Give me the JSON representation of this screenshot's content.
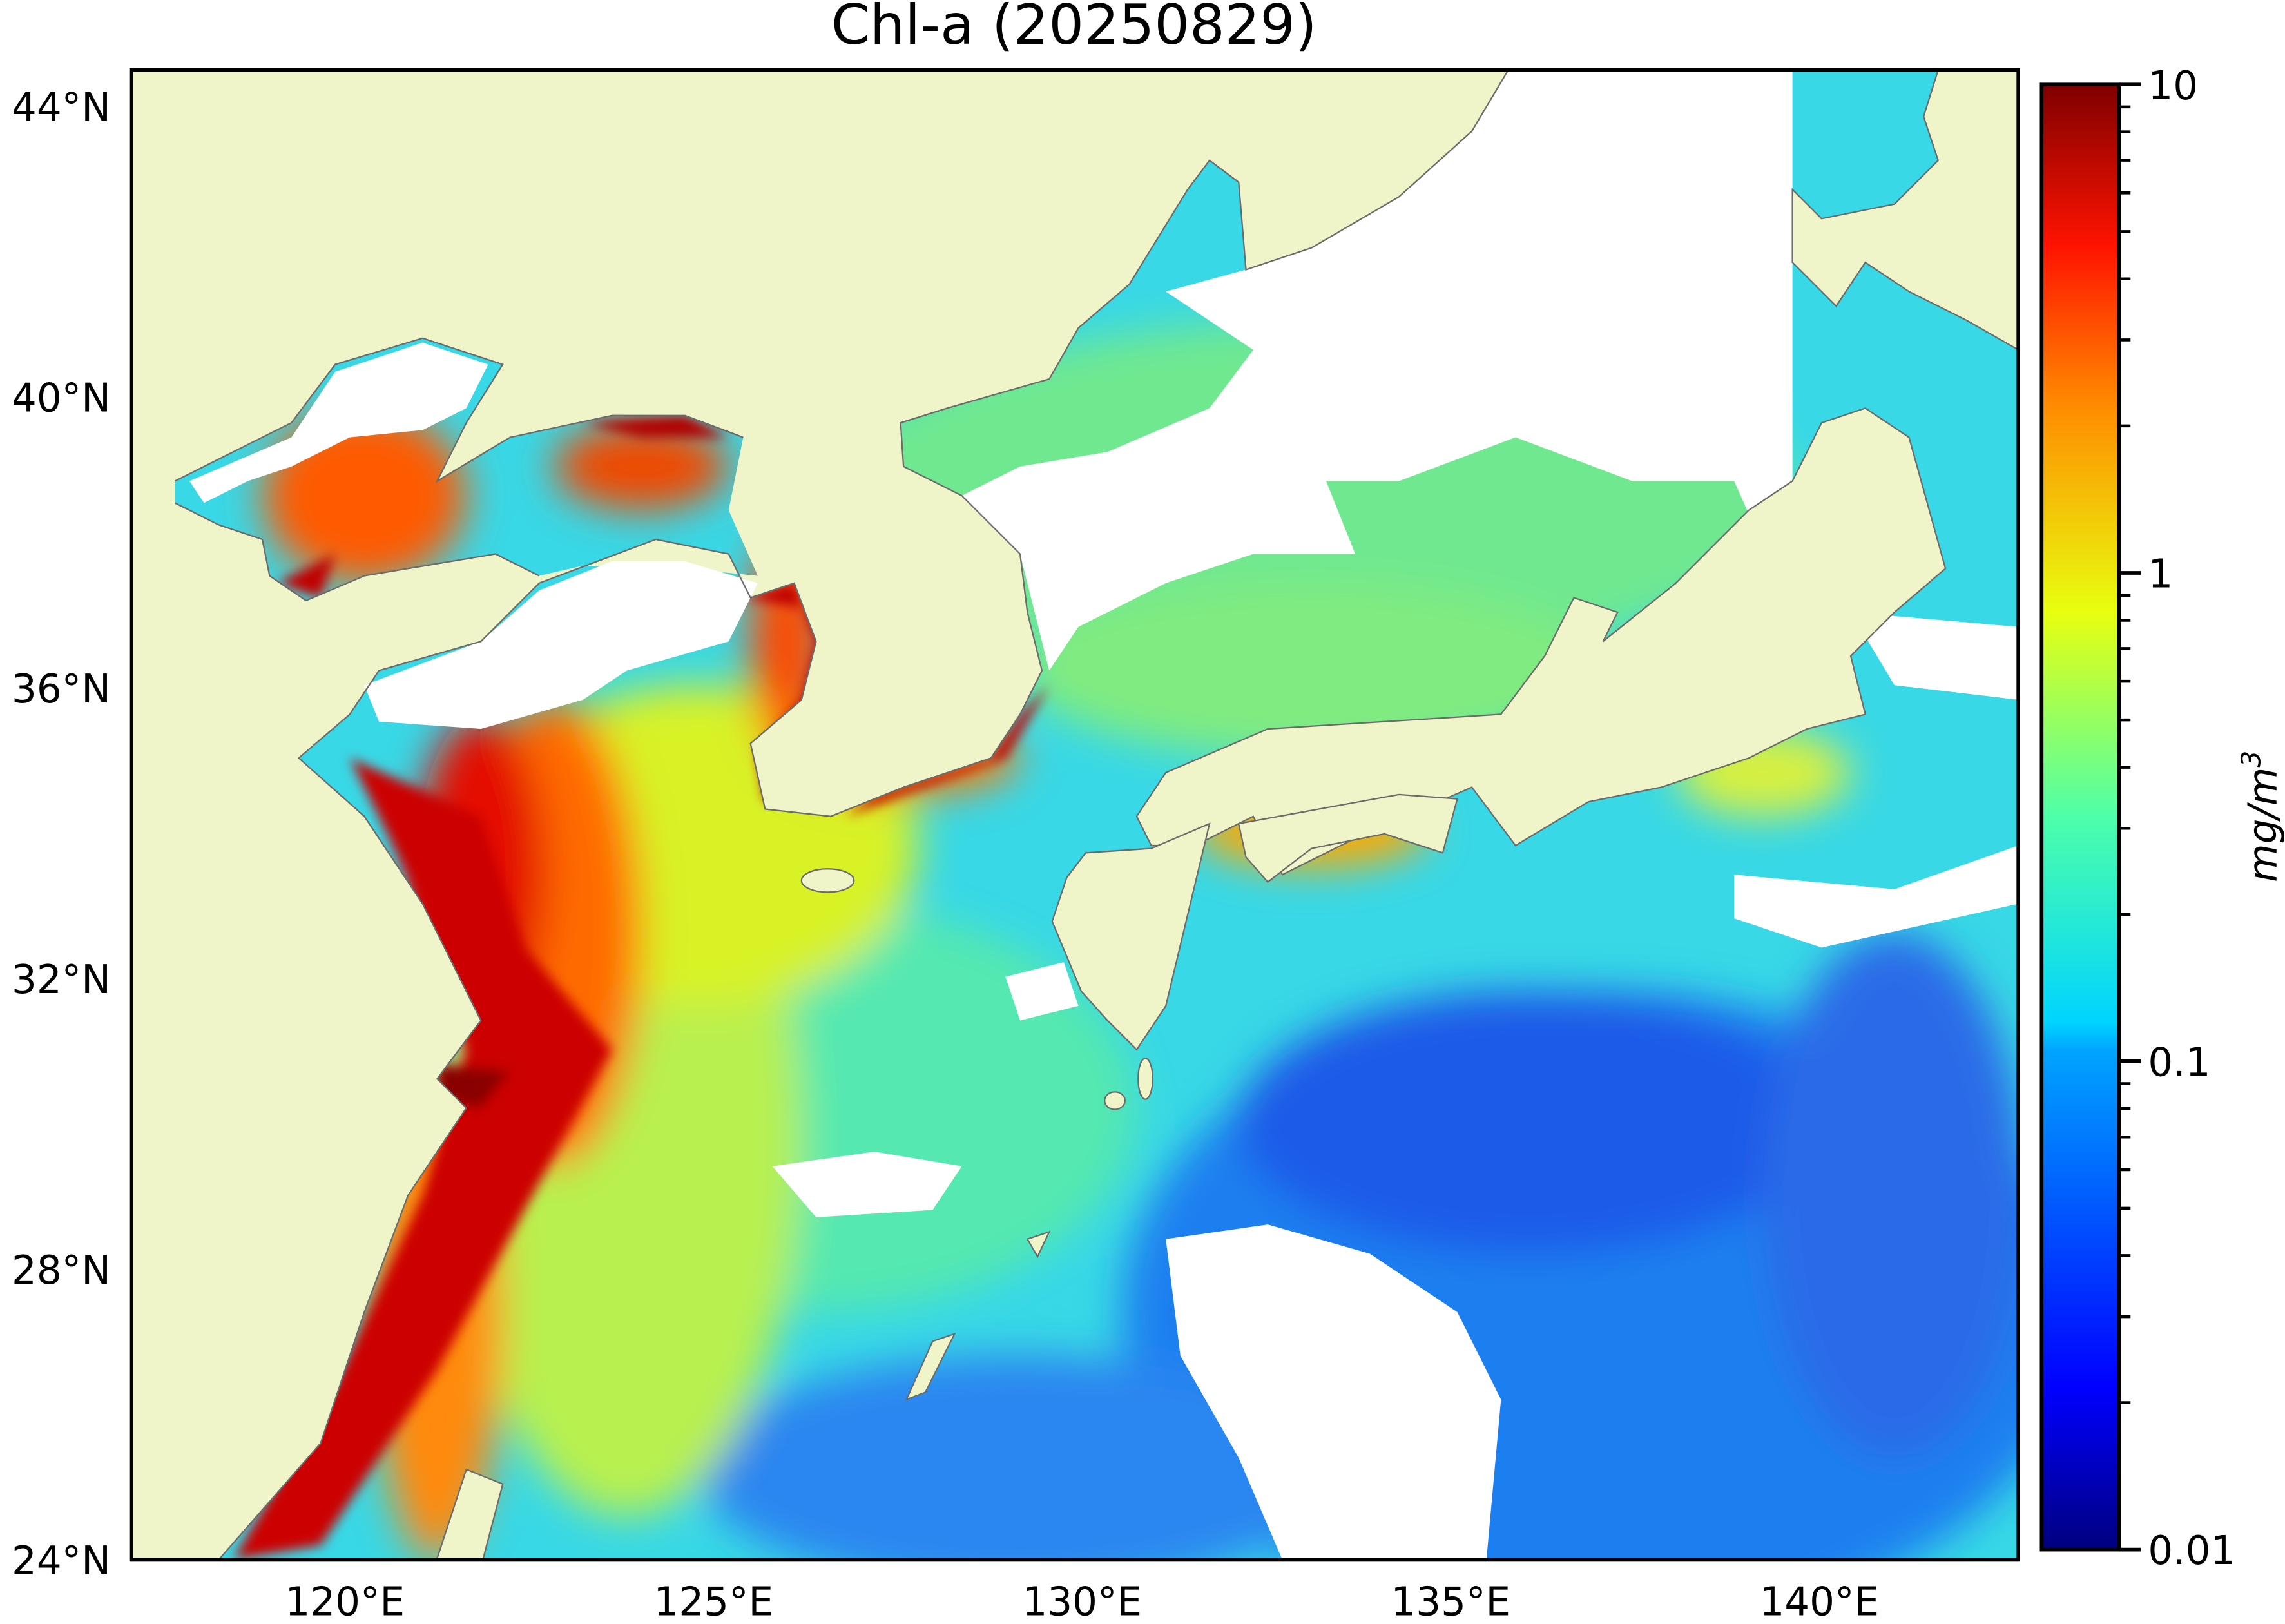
{
  "chart_data": {
    "type": "heatmap",
    "title": "Chl-a (20250829)",
    "lon_range": [
      117.1,
      142.7
    ],
    "lat_range": [
      24.0,
      44.5
    ],
    "lon_ticks": [
      120,
      125,
      130,
      135,
      140
    ],
    "lon_tick_labels": [
      "120°E",
      "125°E",
      "130°E",
      "135°E",
      "140°E"
    ],
    "lat_ticks": [
      44,
      40,
      36,
      32,
      28,
      24
    ],
    "lat_tick_labels": [
      "44°N",
      "40°N",
      "36°N",
      "32°N",
      "28°N",
      "24°N"
    ],
    "colorbar": {
      "scale": "log",
      "range": [
        0.01,
        10
      ],
      "ticks": [
        10,
        1,
        0.1,
        0.01
      ],
      "tick_labels": [
        "10",
        "1",
        "0.1",
        "0.01"
      ],
      "label": "mg/m",
      "label_superscript": "3",
      "colormap": "jet"
    },
    "colors": {
      "land": "#f0f4c9",
      "coastline": "#6b6b6b",
      "no_data": "#ffffff"
    }
  }
}
